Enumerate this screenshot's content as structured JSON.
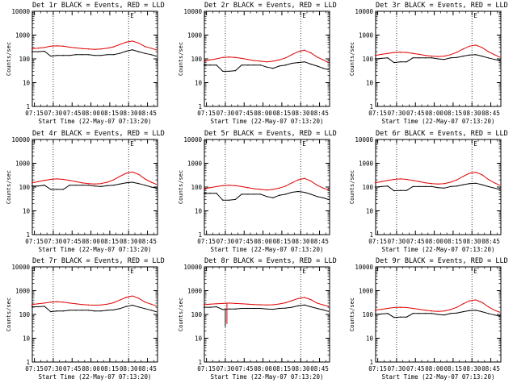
{
  "figure": {
    "panel_title_suffix": "BLACK = Events, RED = LLD",
    "ylabel": "Counts/sec",
    "xlabel": "Start Time (22-May-07 07:13:20)",
    "xtick_labels": [
      "07:15",
      "07:30",
      "07:45",
      "08:00",
      "08:15",
      "08:30",
      "08:45"
    ],
    "ytick_labels": [
      "1",
      "10",
      "100",
      "1000",
      "10000"
    ],
    "corner_mark": "E",
    "colors": {
      "events": "#000000",
      "lld": "#e00000",
      "axes": "#000000"
    }
  },
  "chart_data": [
    {
      "type": "line",
      "title": "Det 1r",
      "xlabel": "Start Time (22-May-07 07:13:20)",
      "ylabel": "Counts/sec",
      "yscale": "log",
      "ylim": [
        1,
        10000
      ],
      "xlim": [
        "07:13:20",
        "08:53"
      ],
      "vlines": [
        "07:30",
        "08:30"
      ],
      "grid": false,
      "x": [
        "07:13",
        "07:18",
        "07:23",
        "07:28",
        "07:33",
        "07:38",
        "07:43",
        "07:48",
        "07:53",
        "07:58",
        "08:03",
        "08:08",
        "08:13",
        "08:18",
        "08:23",
        "08:28",
        "08:33",
        "08:38",
        "08:43",
        "08:48",
        "08:52"
      ],
      "series": [
        {
          "name": "BLACK = Events",
          "values": [
            200,
            200,
            210,
            130,
            140,
            140,
            140,
            150,
            150,
            150,
            140,
            140,
            150,
            150,
            170,
            210,
            240,
            200,
            170,
            150,
            130
          ]
        },
        {
          "name": "RED = LLD",
          "values": [
            270,
            280,
            300,
            340,
            350,
            340,
            310,
            290,
            270,
            260,
            250,
            260,
            280,
            320,
            400,
            500,
            560,
            460,
            330,
            280,
            240
          ]
        }
      ]
    },
    {
      "type": "line",
      "title": "Det 2r",
      "xlabel": "Start Time (22-May-07 07:13:20)",
      "ylabel": "Counts/sec",
      "yscale": "log",
      "ylim": [
        1,
        10000
      ],
      "xlim": [
        "07:13:20",
        "08:53"
      ],
      "vlines": [
        "07:30",
        "08:30"
      ],
      "grid": false,
      "x": [
        "07:13",
        "07:18",
        "07:23",
        "07:28",
        "07:33",
        "07:38",
        "07:43",
        "07:48",
        "07:53",
        "07:58",
        "08:03",
        "08:08",
        "08:13",
        "08:18",
        "08:23",
        "08:28",
        "08:33",
        "08:38",
        "08:43",
        "08:48",
        "08:52"
      ],
      "series": [
        {
          "name": "BLACK = Events",
          "values": [
            55,
            55,
            55,
            30,
            30,
            32,
            55,
            55,
            55,
            55,
            45,
            40,
            50,
            55,
            65,
            70,
            75,
            60,
            50,
            40,
            35
          ]
        },
        {
          "name": "RED = LLD",
          "values": [
            80,
            90,
            100,
            115,
            120,
            115,
            105,
            95,
            85,
            80,
            75,
            80,
            90,
            110,
            150,
            200,
            230,
            180,
            120,
            90,
            70
          ]
        }
      ]
    },
    {
      "type": "line",
      "title": "Det 3r",
      "xlabel": "Start Time (22-May-07 07:13:20)",
      "ylabel": "Counts/sec",
      "yscale": "log",
      "ylim": [
        1,
        10000
      ],
      "xlim": [
        "07:13:20",
        "08:53"
      ],
      "vlines": [
        "07:30",
        "08:30"
      ],
      "grid": false,
      "x": [
        "07:13",
        "07:18",
        "07:23",
        "07:28",
        "07:33",
        "07:38",
        "07:43",
        "07:48",
        "07:53",
        "07:58",
        "08:03",
        "08:08",
        "08:13",
        "08:18",
        "08:23",
        "08:28",
        "08:33",
        "08:38",
        "08:43",
        "08:48",
        "08:52"
      ],
      "series": [
        {
          "name": "BLACK = Events",
          "values": [
            100,
            105,
            110,
            70,
            75,
            75,
            110,
            110,
            110,
            110,
            100,
            95,
            110,
            115,
            130,
            145,
            150,
            130,
            110,
            95,
            85
          ]
        },
        {
          "name": "RED = LLD",
          "values": [
            140,
            155,
            170,
            185,
            190,
            185,
            170,
            155,
            140,
            130,
            125,
            130,
            150,
            190,
            260,
            340,
            380,
            300,
            200,
            150,
            120
          ]
        }
      ]
    },
    {
      "type": "line",
      "title": "Det 4r",
      "xlabel": "Start Time (22-May-07 07:13:20)",
      "ylabel": "Counts/sec",
      "yscale": "log",
      "ylim": [
        1,
        10000
      ],
      "xlim": [
        "07:13:20",
        "08:53"
      ],
      "vlines": [
        "07:30",
        "08:30"
      ],
      "grid": false,
      "x": [
        "07:13",
        "07:18",
        "07:23",
        "07:28",
        "07:33",
        "07:38",
        "07:43",
        "07:48",
        "07:53",
        "07:58",
        "08:03",
        "08:08",
        "08:13",
        "08:18",
        "08:23",
        "08:28",
        "08:33",
        "08:38",
        "08:43",
        "08:48",
        "08:52"
      ],
      "series": [
        {
          "name": "BLACK = Events",
          "values": [
            110,
            110,
            120,
            80,
            80,
            80,
            120,
            120,
            120,
            120,
            110,
            105,
            115,
            120,
            135,
            150,
            160,
            140,
            120,
            100,
            90
          ]
        },
        {
          "name": "RED = LLD",
          "values": [
            150,
            170,
            190,
            210,
            220,
            210,
            190,
            170,
            150,
            140,
            135,
            140,
            160,
            200,
            280,
            380,
            430,
            340,
            220,
            160,
            130
          ]
        }
      ]
    },
    {
      "type": "line",
      "title": "Det 5r",
      "xlabel": "Start Time (22-May-07 07:13:20)",
      "ylabel": "Counts/sec",
      "yscale": "log",
      "ylim": [
        1,
        10000
      ],
      "xlim": [
        "07:13:20",
        "08:53"
      ],
      "vlines": [
        "07:30",
        "08:30"
      ],
      "grid": false,
      "x": [
        "07:13",
        "07:18",
        "07:23",
        "07:28",
        "07:33",
        "07:38",
        "07:43",
        "07:48",
        "07:53",
        "07:58",
        "08:03",
        "08:08",
        "08:13",
        "08:18",
        "08:23",
        "08:28",
        "08:33",
        "08:38",
        "08:43",
        "08:48",
        "08:52"
      ],
      "series": [
        {
          "name": "BLACK = Events",
          "values": [
            55,
            55,
            55,
            28,
            28,
            30,
            50,
            50,
            50,
            50,
            40,
            35,
            45,
            50,
            60,
            65,
            60,
            50,
            40,
            35,
            30
          ]
        },
        {
          "name": "RED = LLD",
          "values": [
            85,
            95,
            105,
            115,
            120,
            115,
            105,
            95,
            85,
            80,
            75,
            80,
            90,
            110,
            150,
            200,
            230,
            180,
            120,
            90,
            75
          ]
        }
      ]
    },
    {
      "type": "line",
      "title": "Det 6r",
      "xlabel": "Start Time (22-May-07 07:13:20)",
      "ylabel": "Counts/sec",
      "yscale": "log",
      "ylim": [
        1,
        10000
      ],
      "xlim": [
        "07:13:20",
        "08:53"
      ],
      "vlines": [
        "07:30",
        "08:30"
      ],
      "grid": false,
      "x": [
        "07:13",
        "07:18",
        "07:23",
        "07:28",
        "07:33",
        "07:38",
        "07:43",
        "07:48",
        "07:53",
        "07:58",
        "08:03",
        "08:08",
        "08:13",
        "08:18",
        "08:23",
        "08:28",
        "08:33",
        "08:38",
        "08:43",
        "08:48",
        "08:52"
      ],
      "series": [
        {
          "name": "BLACK = Events",
          "values": [
            100,
            105,
            110,
            70,
            72,
            72,
            105,
            105,
            105,
            105,
            95,
            90,
            105,
            110,
            125,
            140,
            145,
            125,
            105,
            90,
            80
          ]
        },
        {
          "name": "RED = LLD",
          "values": [
            150,
            170,
            190,
            210,
            220,
            210,
            190,
            170,
            150,
            140,
            135,
            140,
            160,
            200,
            280,
            380,
            420,
            330,
            210,
            150,
            120
          ]
        }
      ]
    },
    {
      "type": "line",
      "title": "Det 7r",
      "xlabel": "Start Time (22-May-07 07:13:20)",
      "ylabel": "Counts/sec",
      "yscale": "log",
      "ylim": [
        1,
        10000
      ],
      "xlim": [
        "07:13:20",
        "08:53"
      ],
      "vlines": [
        "07:30",
        "08:30"
      ],
      "grid": false,
      "x": [
        "07:13",
        "07:18",
        "07:23",
        "07:28",
        "07:33",
        "07:38",
        "07:43",
        "07:48",
        "07:53",
        "07:58",
        "08:03",
        "08:08",
        "08:13",
        "08:18",
        "08:23",
        "08:28",
        "08:33",
        "08:38",
        "08:43",
        "08:48",
        "08:52"
      ],
      "series": [
        {
          "name": "BLACK = Events",
          "values": [
            210,
            210,
            220,
            130,
            140,
            140,
            150,
            150,
            150,
            150,
            140,
            140,
            150,
            155,
            175,
            215,
            245,
            205,
            175,
            150,
            130
          ]
        },
        {
          "name": "RED = LLD",
          "values": [
            260,
            280,
            300,
            330,
            340,
            330,
            300,
            280,
            260,
            250,
            245,
            250,
            270,
            310,
            400,
            520,
            600,
            480,
            330,
            270,
            230
          ]
        }
      ]
    },
    {
      "type": "line",
      "title": "Det 8r",
      "xlabel": "Start Time (22-May-07 07:13:20)",
      "ylabel": "Counts/sec",
      "yscale": "log",
      "ylim": [
        1,
        10000
      ],
      "xlim": [
        "07:13:20",
        "08:53"
      ],
      "vlines": [
        "07:30",
        "08:30"
      ],
      "grid": false,
      "x": [
        "07:13",
        "07:18",
        "07:23",
        "07:28",
        "07:33",
        "07:38",
        "07:43",
        "07:48",
        "07:53",
        "07:58",
        "08:03",
        "08:08",
        "08:13",
        "08:18",
        "08:23",
        "08:28",
        "08:33",
        "08:38",
        "08:43",
        "08:48",
        "08:52"
      ],
      "series": [
        {
          "name": "BLACK = Events",
          "values": [
            200,
            200,
            210,
            160,
            170,
            170,
            180,
            180,
            180,
            180,
            170,
            165,
            180,
            185,
            200,
            230,
            250,
            210,
            180,
            155,
            135
          ]
        },
        {
          "name": "RED = LLD",
          "values": [
            260,
            270,
            280,
            290,
            300,
            290,
            280,
            270,
            260,
            255,
            250,
            255,
            275,
            310,
            380,
            470,
            520,
            420,
            300,
            250,
            220
          ]
        }
      ],
      "annotations": [
        {
          "x": "07:30",
          "events_min": 30,
          "lld_dip": 40,
          "note": "spike"
        }
      ]
    },
    {
      "type": "line",
      "title": "Det 9r",
      "xlabel": "Start Time (22-May-07 07:13:20)",
      "ylabel": "Counts/sec",
      "yscale": "log",
      "ylim": [
        1,
        10000
      ],
      "xlim": [
        "07:13:20",
        "08:53"
      ],
      "vlines": [
        "07:30",
        "08:30"
      ],
      "grid": false,
      "x": [
        "07:13",
        "07:18",
        "07:23",
        "07:28",
        "07:33",
        "07:38",
        "07:43",
        "07:48",
        "07:53",
        "07:58",
        "08:03",
        "08:08",
        "08:13",
        "08:18",
        "08:23",
        "08:28",
        "08:33",
        "08:38",
        "08:43",
        "08:48",
        "08:52"
      ],
      "series": [
        {
          "name": "BLACK = Events",
          "values": [
            100,
            105,
            110,
            75,
            78,
            78,
            110,
            110,
            110,
            110,
            100,
            95,
            110,
            115,
            130,
            145,
            150,
            130,
            110,
            95,
            85
          ]
        },
        {
          "name": "RED = LLD",
          "values": [
            150,
            165,
            180,
            195,
            200,
            195,
            180,
            165,
            150,
            140,
            135,
            140,
            160,
            200,
            280,
            370,
            410,
            320,
            210,
            150,
            125
          ]
        }
      ]
    }
  ]
}
